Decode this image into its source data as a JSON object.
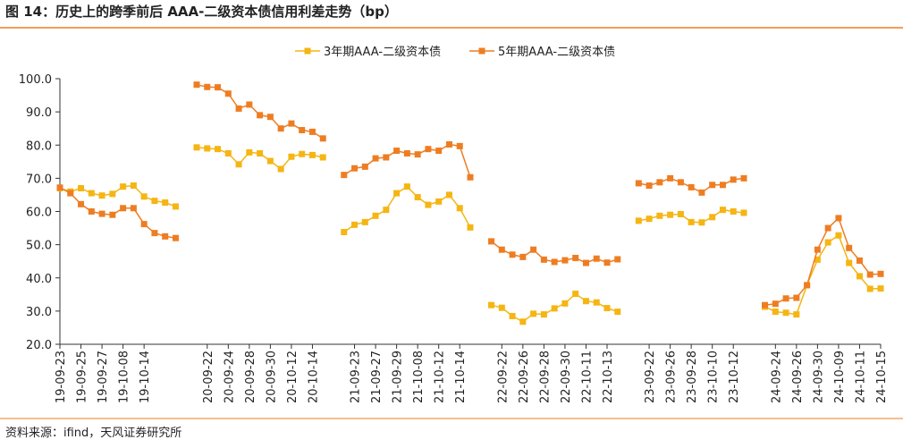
{
  "chart_data": {
    "type": "line",
    "title": "图 14：历史上的跨季前后 AAA-二级资本债信用利差走势（bp）",
    "source": "资料来源：ifind，天风证券研究所",
    "categories": [
      "19-09-23",
      null,
      "19-09-25",
      null,
      "19-09-27",
      null,
      "19-10-08",
      null,
      "19-10-14",
      null,
      null,
      null,
      null,
      null,
      "20-09-22",
      null,
      "20-09-24",
      null,
      "20-09-28",
      null,
      "20-09-30",
      null,
      "20-10-12",
      null,
      "20-10-14",
      null,
      null,
      null,
      "21-09-23",
      null,
      "21-09-27",
      null,
      "21-09-29",
      null,
      "21-10-08",
      null,
      "21-10-12",
      null,
      "21-10-14",
      null,
      null,
      null,
      "22-09-22",
      null,
      "22-09-26",
      null,
      "22-09-28",
      null,
      "22-09-30",
      null,
      "22-10-11",
      null,
      "22-10-13",
      null,
      null,
      null,
      "23-09-22",
      null,
      "23-09-26",
      null,
      "23-09-28",
      null,
      "23-10-10",
      null,
      "23-10-12",
      null,
      null,
      null,
      "24-09-24",
      null,
      "24-09-26",
      null,
      "24-09-30",
      null,
      "24-10-09",
      null,
      "24-10-11",
      null,
      "24-10-15"
    ],
    "series": [
      {
        "name": "3年期AAA-二级资本债",
        "color": "#F5B512",
        "values": [
          67.0,
          66.0,
          67.0,
          65.5,
          64.8,
          65.3,
          67.5,
          67.8,
          64.5,
          63.2,
          62.7,
          61.5,
          null,
          79.3,
          79.0,
          78.8,
          77.5,
          74.2,
          77.8,
          77.5,
          75.2,
          72.8,
          76.5,
          77.3,
          77.0,
          76.3,
          null,
          53.8,
          56.0,
          56.8,
          58.7,
          60.5,
          65.5,
          67.5,
          64.3,
          62.0,
          63.0,
          65.0,
          61.0,
          55.2,
          null,
          31.8,
          31.0,
          28.5,
          26.8,
          29.2,
          29.0,
          30.8,
          32.3,
          35.2,
          33.0,
          32.6,
          30.9,
          29.8,
          null,
          57.2,
          57.8,
          58.7,
          59.0,
          59.2,
          56.8,
          56.7,
          58.3,
          60.5,
          60.0,
          59.6,
          null,
          31.3,
          29.8,
          29.5,
          29.0,
          37.8,
          45.5,
          50.7,
          52.8,
          44.5,
          40.5,
          36.7,
          36.8
        ]
      },
      {
        "name": "5年期AAA-二级资本债",
        "color": "#EE7D22",
        "values": [
          67.2,
          65.5,
          62.2,
          60.0,
          59.3,
          59.0,
          61.0,
          61.0,
          56.2,
          53.5,
          52.5,
          52.0,
          null,
          98.2,
          97.5,
          97.4,
          95.5,
          91.0,
          92.2,
          89.0,
          88.5,
          85.0,
          86.5,
          84.5,
          84.0,
          82.0,
          null,
          71.0,
          73.0,
          73.5,
          76.0,
          76.3,
          78.3,
          77.5,
          77.2,
          78.8,
          78.3,
          80.2,
          79.7,
          70.3,
          null,
          51.0,
          48.5,
          47.0,
          46.3,
          48.5,
          45.5,
          44.8,
          45.3,
          46.0,
          44.5,
          45.8,
          44.6,
          45.6,
          null,
          68.5,
          67.8,
          68.8,
          70.0,
          68.8,
          67.3,
          65.7,
          68.0,
          68.0,
          69.6,
          70.0,
          null,
          31.8,
          32.2,
          33.8,
          34.0,
          37.8,
          48.5,
          55.0,
          58.0,
          49.0,
          45.2,
          41.0,
          41.2
        ]
      }
    ],
    "ylim": [
      20,
      100
    ],
    "yticks": [
      {
        "value": 20,
        "label": "20.0"
      },
      {
        "value": 30,
        "label": "30.0"
      },
      {
        "value": 40,
        "label": "40.0"
      },
      {
        "value": 50,
        "label": "50.0"
      },
      {
        "value": 60,
        "label": "60.0"
      },
      {
        "value": 70,
        "label": "70.0"
      },
      {
        "value": 80,
        "label": "80.0"
      },
      {
        "value": 90,
        "label": "90.0"
      },
      {
        "value": 100,
        "label": "100.0"
      }
    ],
    "grid": false
  }
}
